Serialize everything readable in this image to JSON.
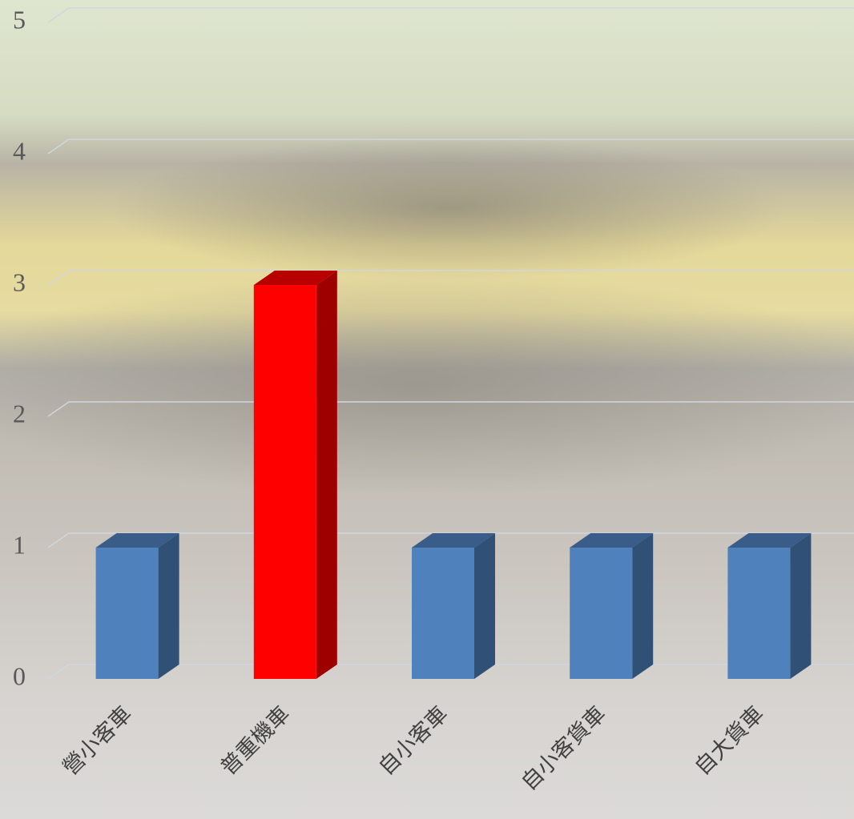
{
  "chart_data": {
    "type": "bar3d",
    "categories": [
      "營小客車",
      "普重機車",
      "自小客車",
      "自小客貨車",
      "自大貨車"
    ],
    "values": [
      1,
      3,
      1,
      1,
      1
    ],
    "colors": [
      "#4f81bd",
      "#ff0000",
      "#4f81bd",
      "#4f81bd",
      "#4f81bd"
    ],
    "ylim": [
      0,
      5
    ],
    "yticks": [
      0,
      1,
      2,
      3,
      4,
      5
    ],
    "grid": true
  }
}
